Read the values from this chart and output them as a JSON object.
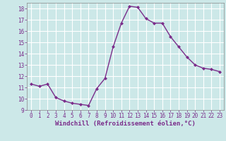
{
  "x": [
    0,
    1,
    2,
    3,
    4,
    5,
    6,
    7,
    8,
    9,
    10,
    11,
    12,
    13,
    14,
    15,
    16,
    17,
    18,
    19,
    20,
    21,
    22,
    23
  ],
  "y": [
    11.3,
    11.1,
    11.3,
    10.1,
    9.8,
    9.6,
    9.5,
    9.4,
    10.9,
    11.8,
    14.6,
    16.7,
    18.2,
    18.1,
    17.1,
    16.7,
    16.7,
    15.5,
    14.6,
    13.7,
    13.0,
    12.7,
    12.6,
    12.4
  ],
  "line_color": "#7b2d8b",
  "marker": "D",
  "marker_size": 2.0,
  "bg_color": "#cce8e8",
  "grid_color": "#b0d0d0",
  "xlabel": "Windchill (Refroidissement éolien,°C)",
  "xlim": [
    -0.5,
    23.5
  ],
  "ylim": [
    9,
    18.5
  ],
  "yticks": [
    9,
    10,
    11,
    12,
    13,
    14,
    15,
    16,
    17,
    18
  ],
  "xticks": [
    0,
    1,
    2,
    3,
    4,
    5,
    6,
    7,
    8,
    9,
    10,
    11,
    12,
    13,
    14,
    15,
    16,
    17,
    18,
    19,
    20,
    21,
    22,
    23
  ],
  "tick_label_size": 5.5,
  "xlabel_size": 6.5,
  "line_width": 1.0
}
